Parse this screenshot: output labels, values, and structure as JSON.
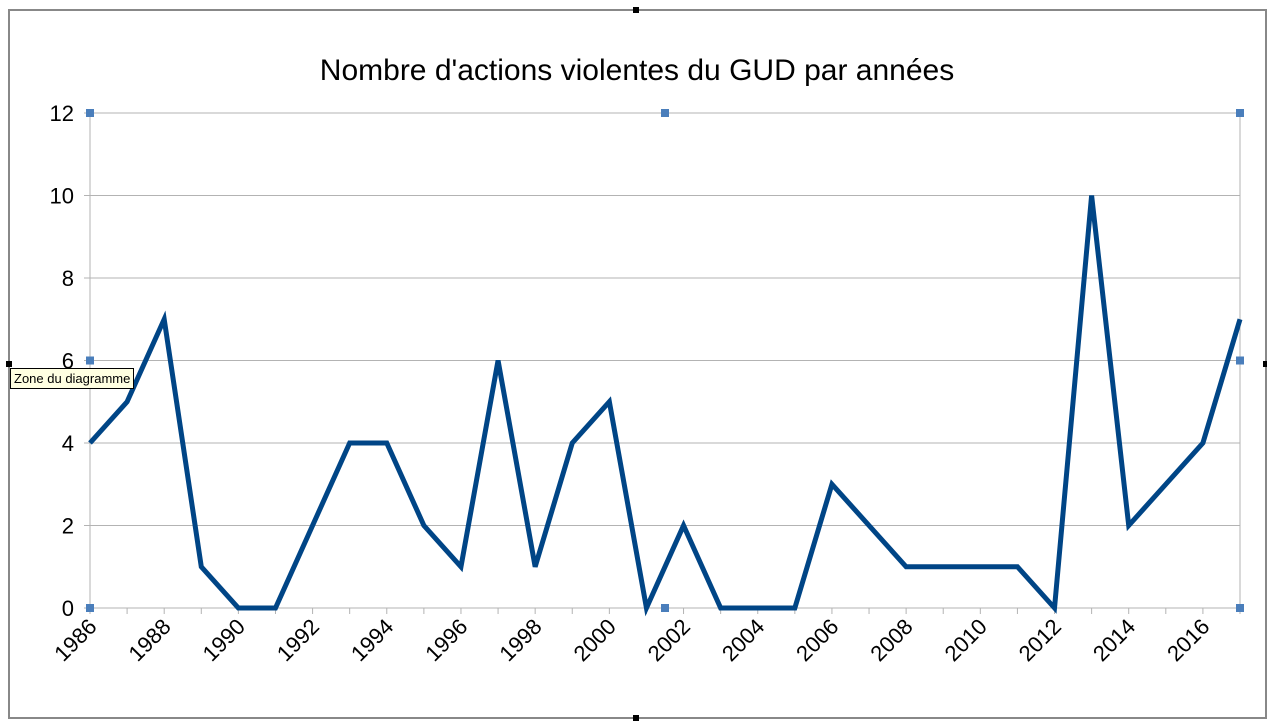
{
  "chart_data": {
    "type": "line",
    "title": "Nombre d'actions violentes du GUD par années",
    "categories": [
      "1986",
      null,
      "1988",
      null,
      "1990",
      null,
      "1992",
      null,
      "1994",
      null,
      "1996",
      null,
      "1998",
      null,
      "2000",
      null,
      "2002",
      null,
      "2004",
      null,
      "2006",
      null,
      "2008",
      null,
      "2010",
      null,
      "2012",
      null,
      "2014",
      null,
      "2016",
      null
    ],
    "series": [
      {
        "name": "Nombre d'actions violentes",
        "color": "#004586",
        "values": [
          4,
          5,
          7,
          1,
          0,
          0,
          2,
          4,
          4,
          2,
          1,
          6,
          1,
          4,
          5,
          0,
          2,
          0,
          0,
          0,
          3,
          2,
          1,
          1,
          1,
          1,
          0,
          10,
          2,
          3,
          4,
          7
        ]
      }
    ],
    "ylim": [
      0,
      12
    ],
    "yticks": [
      0,
      2,
      4,
      6,
      8,
      10,
      12
    ],
    "grid": true
  },
  "tooltip": "Zone du diagramme"
}
